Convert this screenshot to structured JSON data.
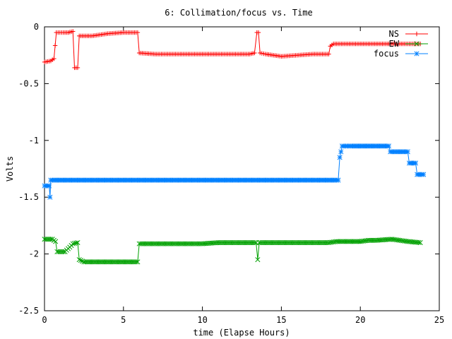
{
  "chart_data": {
    "type": "line",
    "title": "6: Collimation/focus vs. Time",
    "xlabel": "time (Elapse Hours)",
    "ylabel": "Volts",
    "xlim": [
      0,
      25
    ],
    "ylim": [
      -2.5,
      0
    ],
    "x_ticks": [
      0,
      5,
      10,
      15,
      20,
      25
    ],
    "y_ticks": [
      0,
      -0.5,
      -1,
      -1.5,
      -2,
      -2.5
    ],
    "x_tick_labels": [
      "0",
      "5",
      "10",
      "15",
      "20",
      "25"
    ],
    "y_tick_labels": [
      "0",
      "-0.5",
      "-1",
      "-1.5",
      "-2",
      "-2.5"
    ],
    "grid": false,
    "legend_position": "top-right",
    "series": [
      {
        "name": "NS",
        "color": "#ff0000",
        "marker": "plus",
        "points": [
          [
            0.0,
            -0.31
          ],
          [
            0.4,
            -0.3
          ],
          [
            0.6,
            -0.28
          ],
          [
            0.75,
            -0.05
          ],
          [
            1.2,
            -0.05
          ],
          [
            1.5,
            -0.05
          ],
          [
            1.8,
            -0.04
          ],
          [
            1.9,
            -0.36
          ],
          [
            2.1,
            -0.36
          ],
          [
            2.2,
            -0.08
          ],
          [
            3.0,
            -0.08
          ],
          [
            4.0,
            -0.06
          ],
          [
            5.0,
            -0.05
          ],
          [
            5.9,
            -0.05
          ],
          [
            6.0,
            -0.23
          ],
          [
            7.0,
            -0.24
          ],
          [
            8.0,
            -0.24
          ],
          [
            9.0,
            -0.24
          ],
          [
            10.0,
            -0.24
          ],
          [
            11.0,
            -0.24
          ],
          [
            12.0,
            -0.24
          ],
          [
            13.0,
            -0.24
          ],
          [
            13.3,
            -0.23
          ],
          [
            13.45,
            -0.05
          ],
          [
            13.55,
            -0.05
          ],
          [
            13.65,
            -0.23
          ],
          [
            14.0,
            -0.24
          ],
          [
            15.0,
            -0.26
          ],
          [
            16.0,
            -0.25
          ],
          [
            17.0,
            -0.24
          ],
          [
            18.0,
            -0.24
          ],
          [
            18.1,
            -0.17
          ],
          [
            18.3,
            -0.15
          ],
          [
            19.0,
            -0.15
          ],
          [
            20.0,
            -0.15
          ],
          [
            21.0,
            -0.15
          ],
          [
            22.0,
            -0.15
          ],
          [
            23.0,
            -0.15
          ],
          [
            23.8,
            -0.15
          ]
        ]
      },
      {
        "name": "EW",
        "color": "#00a000",
        "marker": "x",
        "points": [
          [
            0.0,
            -1.87
          ],
          [
            0.5,
            -1.87
          ],
          [
            0.7,
            -1.89
          ],
          [
            0.8,
            -1.98
          ],
          [
            1.3,
            -1.98
          ],
          [
            1.6,
            -1.94
          ],
          [
            1.8,
            -1.91
          ],
          [
            2.1,
            -1.9
          ],
          [
            2.2,
            -2.05
          ],
          [
            2.5,
            -2.07
          ],
          [
            3.0,
            -2.07
          ],
          [
            4.0,
            -2.07
          ],
          [
            5.0,
            -2.07
          ],
          [
            5.9,
            -2.07
          ],
          [
            6.0,
            -1.91
          ],
          [
            7.0,
            -1.91
          ],
          [
            8.0,
            -1.91
          ],
          [
            9.0,
            -1.91
          ],
          [
            10.0,
            -1.91
          ],
          [
            11.0,
            -1.9
          ],
          [
            12.0,
            -1.9
          ],
          [
            13.0,
            -1.9
          ],
          [
            13.4,
            -1.9
          ],
          [
            13.5,
            -2.05
          ],
          [
            13.6,
            -1.9
          ],
          [
            14.0,
            -1.9
          ],
          [
            15.0,
            -1.9
          ],
          [
            16.0,
            -1.9
          ],
          [
            17.0,
            -1.9
          ],
          [
            18.0,
            -1.9
          ],
          [
            18.5,
            -1.89
          ],
          [
            19.0,
            -1.89
          ],
          [
            20.0,
            -1.89
          ],
          [
            20.5,
            -1.88
          ],
          [
            21.0,
            -1.88
          ],
          [
            22.0,
            -1.87
          ],
          [
            23.0,
            -1.89
          ],
          [
            23.8,
            -1.9
          ]
        ]
      },
      {
        "name": "focus",
        "color": "#0080ff",
        "marker": "star",
        "points": [
          [
            0.0,
            -1.4
          ],
          [
            0.3,
            -1.4
          ],
          [
            0.35,
            -1.5
          ],
          [
            0.4,
            -1.35
          ],
          [
            1.0,
            -1.35
          ],
          [
            2.0,
            -1.35
          ],
          [
            3.0,
            -1.35
          ],
          [
            4.0,
            -1.35
          ],
          [
            5.0,
            -1.35
          ],
          [
            6.0,
            -1.35
          ],
          [
            7.0,
            -1.35
          ],
          [
            8.0,
            -1.35
          ],
          [
            9.0,
            -1.35
          ],
          [
            10.0,
            -1.35
          ],
          [
            11.0,
            -1.35
          ],
          [
            12.0,
            -1.35
          ],
          [
            13.0,
            -1.35
          ],
          [
            14.0,
            -1.35
          ],
          [
            15.0,
            -1.35
          ],
          [
            16.0,
            -1.35
          ],
          [
            17.0,
            -1.35
          ],
          [
            18.0,
            -1.35
          ],
          [
            18.6,
            -1.35
          ],
          [
            18.7,
            -1.15
          ],
          [
            18.85,
            -1.05
          ],
          [
            19.5,
            -1.05
          ],
          [
            20.0,
            -1.05
          ],
          [
            21.0,
            -1.05
          ],
          [
            21.8,
            -1.05
          ],
          [
            21.9,
            -1.1
          ],
          [
            22.5,
            -1.1
          ],
          [
            23.0,
            -1.1
          ],
          [
            23.1,
            -1.2
          ],
          [
            23.5,
            -1.2
          ],
          [
            23.6,
            -1.3
          ],
          [
            24.0,
            -1.3
          ]
        ]
      }
    ]
  }
}
